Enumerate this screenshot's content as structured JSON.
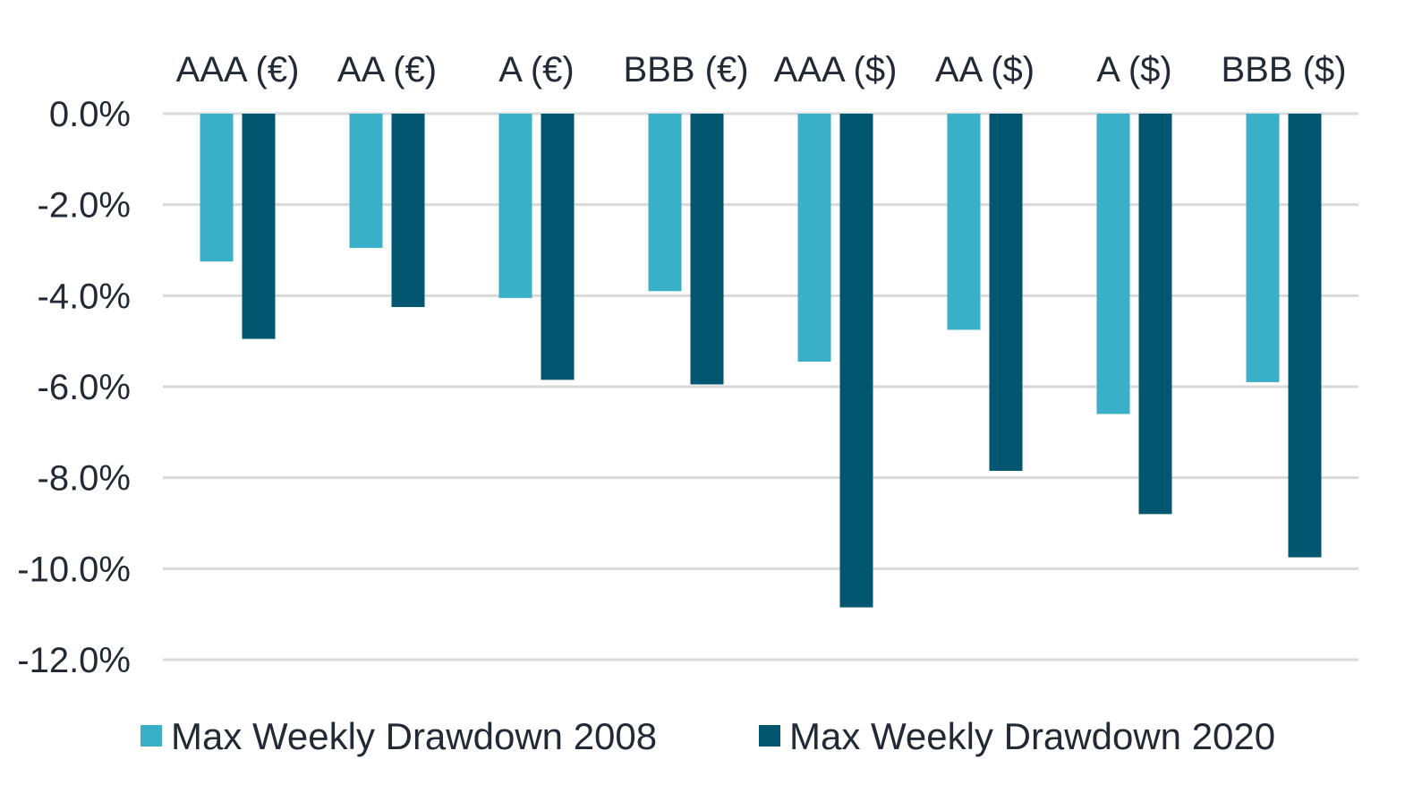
{
  "chart_data": {
    "type": "bar",
    "categories": [
      "AAA (€)",
      "AA (€)",
      "A (€)",
      "BBB (€)",
      "AAA ($)",
      "AA ($)",
      "A ($)",
      "BBB ($)"
    ],
    "series": [
      {
        "name": "Max Weekly Drawdown 2008",
        "color": "#3ab0c8",
        "values": [
          -3.25,
          -2.95,
          -4.05,
          -3.9,
          -5.45,
          -4.75,
          -6.6,
          -5.9
        ]
      },
      {
        "name": "Max Weekly Drawdown 2020",
        "color": "#02566f",
        "values": [
          -4.95,
          -4.25,
          -5.85,
          -5.95,
          -10.85,
          -7.85,
          -8.8,
          -9.75
        ]
      }
    ],
    "yticks": [
      "0.0%",
      "-2.0%",
      "-4.0%",
      "-6.0%",
      "-8.0%",
      "-10.0%",
      "-12.0%"
    ],
    "ylim": [
      -12,
      0
    ],
    "grid": true,
    "legend_position": "bottom"
  }
}
